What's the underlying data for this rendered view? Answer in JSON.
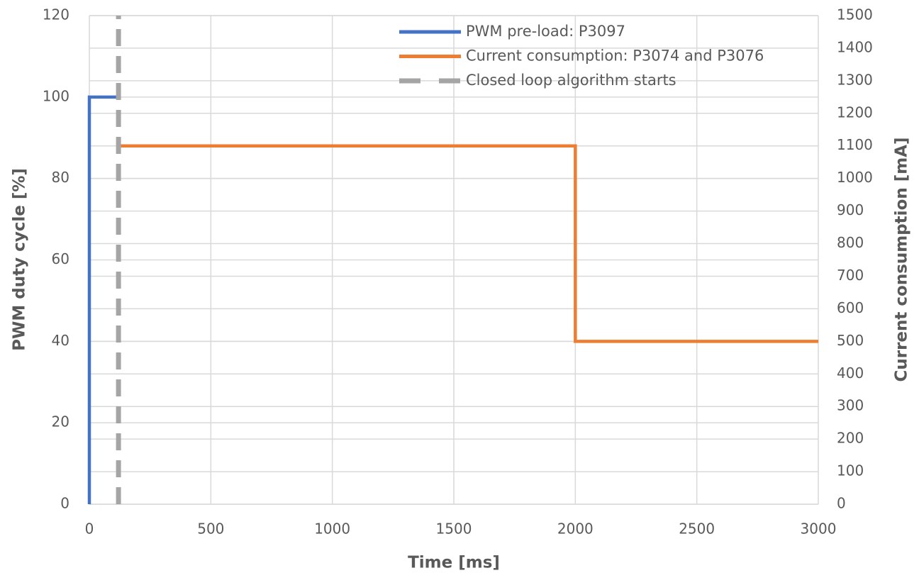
{
  "chart_data": {
    "type": "line",
    "xlabel": "Time [ms]",
    "ylabel": "PWM duty cycle [%]",
    "y2label": "Current consumption [mA]",
    "xlim": [
      0,
      3000
    ],
    "xticks": [
      0,
      500,
      1000,
      1500,
      2000,
      2500,
      3000
    ],
    "ylim": [
      0,
      120
    ],
    "yticks": [
      0,
      20,
      40,
      60,
      80,
      100,
      120
    ],
    "y2lim": [
      0,
      1500
    ],
    "y2ticks": [
      0,
      100,
      200,
      300,
      400,
      500,
      600,
      700,
      800,
      900,
      1000,
      1100,
      1200,
      1300,
      1400,
      1500
    ],
    "grid": true,
    "legend": "top",
    "series": [
      {
        "name": "PWM pre-load: P3097",
        "color": "#4472c4",
        "x": [
          0,
          0,
          120
        ],
        "values": [
          0,
          100,
          100
        ]
      },
      {
        "name": "Current consumption: P3074 and P3076",
        "color": "#ed7d31",
        "axis": "y2",
        "x": [
          120,
          2000,
          2000,
          3000
        ],
        "values": [
          1100,
          1100,
          500,
          500
        ]
      },
      {
        "name": "Closed loop algorithm starts",
        "color": "#a5a5a5",
        "dashed": true,
        "x": [
          120,
          120
        ],
        "values": [
          0,
          120
        ]
      }
    ]
  }
}
